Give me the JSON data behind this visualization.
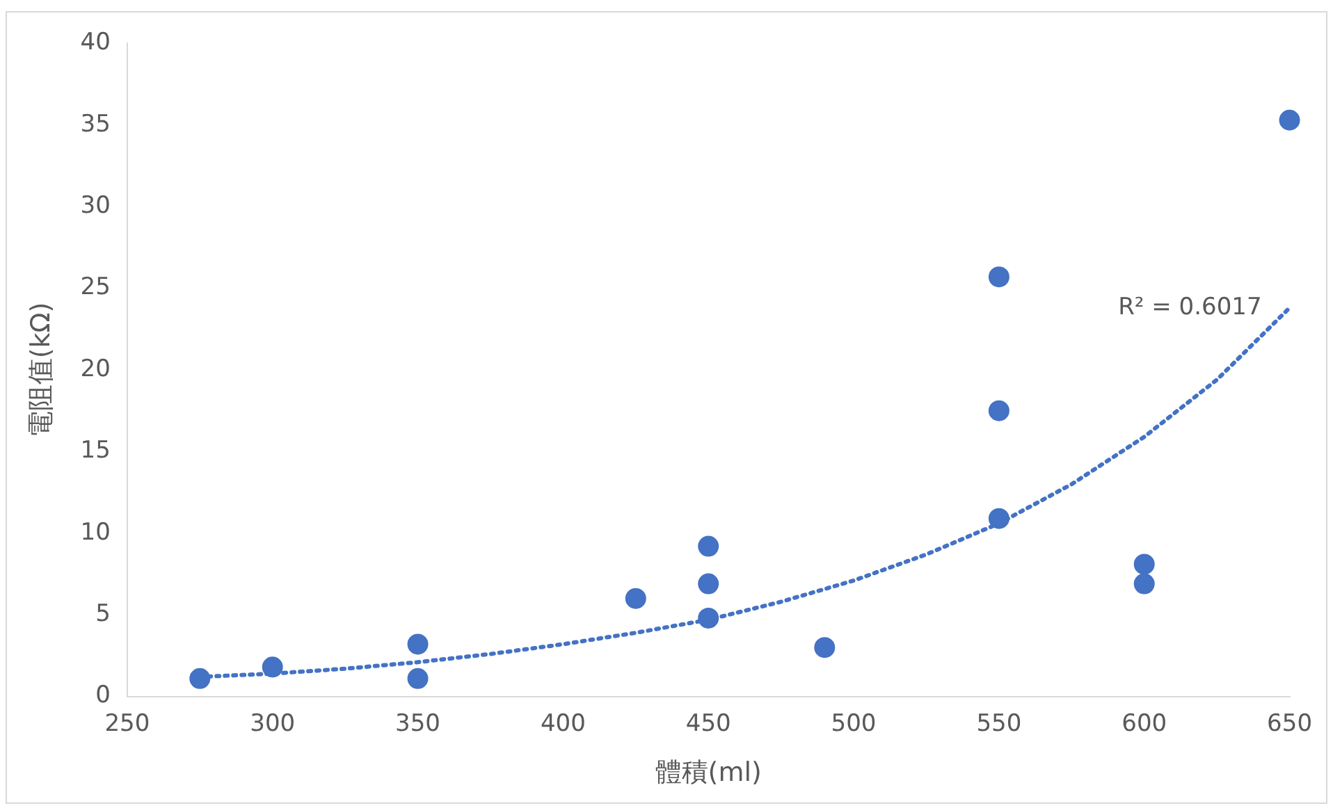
{
  "chart_data": {
    "type": "scatter",
    "xlabel": "體積(ml)",
    "ylabel": "電阻值(kΩ)",
    "xlim": [
      250,
      650
    ],
    "xticks": [
      250,
      300,
      350,
      400,
      450,
      500,
      550,
      600,
      650
    ],
    "ylim": [
      0,
      40
    ],
    "yticks": [
      0,
      5,
      10,
      15,
      20,
      25,
      30,
      35,
      40
    ],
    "grid": false,
    "legend": false,
    "marker": "circle",
    "series": [
      {
        "color": "#4472c4",
        "x": [
          275,
          300,
          350,
          350,
          425,
          450,
          450,
          450,
          490,
          550,
          550,
          550,
          600,
          600,
          650
        ],
        "values": [
          1.1,
          1.8,
          3.2,
          1.1,
          6.0,
          9.2,
          6.9,
          4.8,
          3.0,
          25.7,
          17.5,
          10.9,
          8.1,
          6.9,
          35.3
        ]
      },
      {
        "type": "line",
        "color": "#4472c4",
        "line_style": "dotted",
        "marker": "none",
        "x": [
          275,
          300,
          325,
          350,
          375,
          400,
          425,
          450,
          475,
          500,
          525,
          550,
          575,
          600,
          625,
          650
        ],
        "values": [
          1.2,
          1.4,
          1.7,
          2.1,
          2.6,
          3.2,
          3.9,
          4.7,
          5.8,
          7.1,
          8.7,
          10.6,
          13.0,
          15.9,
          19.4,
          23.8
        ]
      }
    ],
    "annotations": [
      "R² = 0.6017"
    ]
  }
}
